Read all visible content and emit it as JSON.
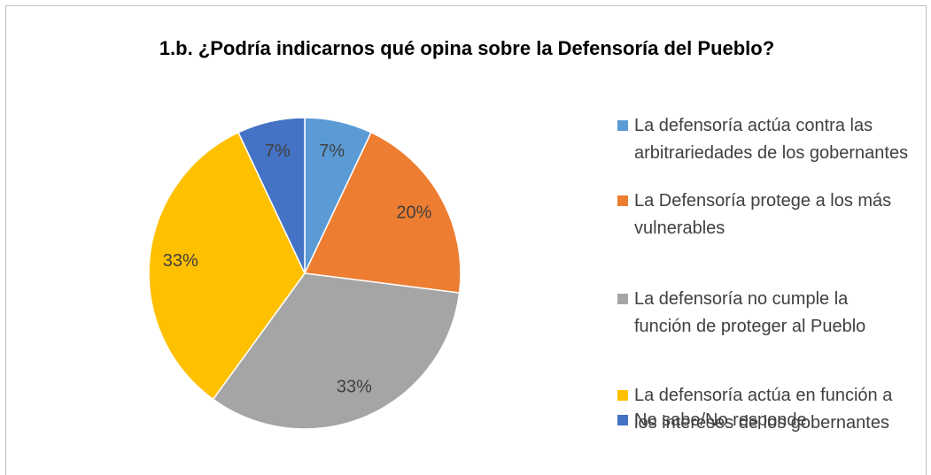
{
  "chart_data": {
    "type": "pie",
    "title": "1.b. ¿Podría indicarnos qué opina sobre la Defensoría del Pueblo?",
    "categories": [
      "La defensoría actúa contra las arbitrariedades de los gobernantes",
      "La Defensoría protege a los más vulnerables",
      "La defensoría no cumple la función de proteger al Pueblo",
      "La defensoría actúa en función a los intereses de los gobernantes",
      "No sabe/No responde"
    ],
    "values": [
      7,
      20,
      33,
      33,
      7
    ],
    "value_labels": [
      "7%",
      "20%",
      "33%",
      "33%",
      "7%"
    ],
    "colors": [
      "#5b9bd5",
      "#ed7d31",
      "#a5a5a5",
      "#ffc000",
      "#4472c4"
    ],
    "legend": "right"
  }
}
